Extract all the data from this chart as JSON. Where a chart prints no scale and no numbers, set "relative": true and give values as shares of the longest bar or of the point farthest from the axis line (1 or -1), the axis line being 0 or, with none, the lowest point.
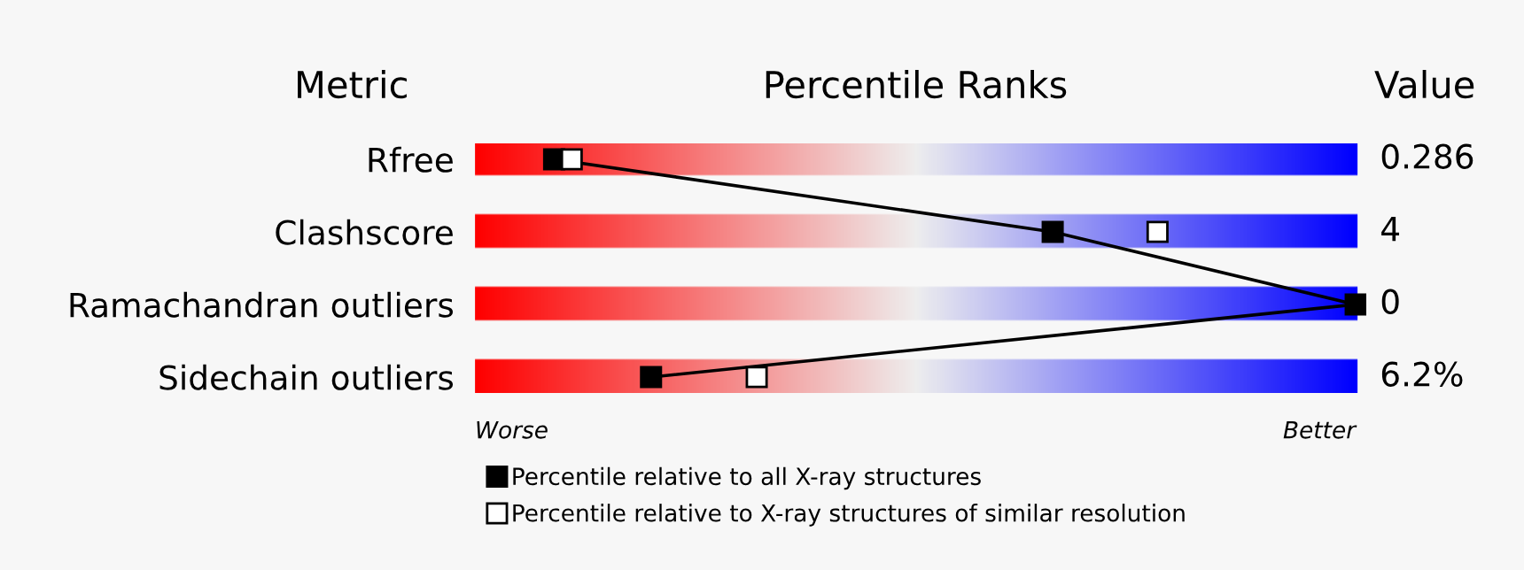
{
  "chart_data": {
    "type": "line",
    "orientation": "horizontal",
    "relative": true,
    "title": "Percentile Ranks",
    "ylabel": "Metric",
    "y2label": "Value",
    "categories": [
      "Rfree",
      "Clashscore",
      "Ramachandran outliers",
      "Sidechain outliers"
    ],
    "series": [
      {
        "name": "Percentile relative to all X-ray structures",
        "color": "#000000",
        "values": [
          0.09,
          0.656,
          1,
          0.2
        ]
      },
      {
        "name": "Percentile relative to X-ray structures of similar resolution",
        "type": "scatter",
        "color": "#ffffff",
        "values": [
          0.11,
          0.775,
          null,
          0.32
        ]
      }
    ],
    "marker": "square",
    "grid": false,
    "legend": "bottom",
    "annotations": [
      "0.286",
      "4",
      "0",
      "6.2%",
      "Worse",
      "Better"
    ]
  }
}
